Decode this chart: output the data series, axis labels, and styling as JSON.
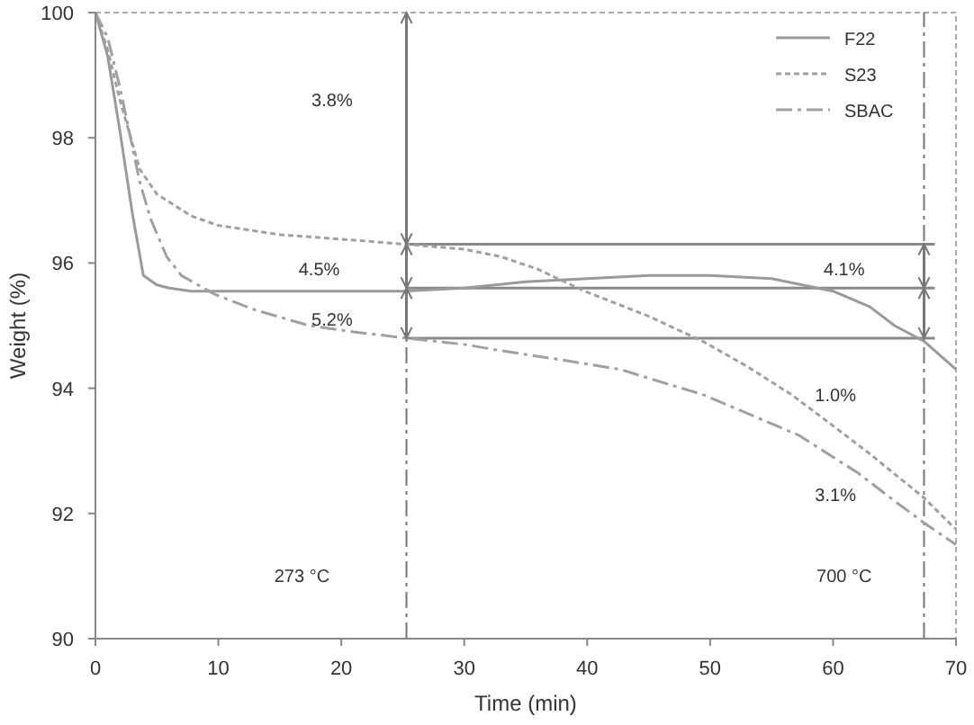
{
  "chart_data": {
    "type": "line",
    "xlabel": "Time (min)",
    "ylabel": "Weight (%)",
    "xlim": [
      0,
      70
    ],
    "ylim": [
      90,
      100
    ],
    "xticks": [
      0,
      10,
      20,
      30,
      40,
      50,
      60,
      70
    ],
    "yticks": [
      90,
      92,
      94,
      96,
      98,
      100
    ],
    "grid": false,
    "legend": "top right",
    "series": [
      {
        "name": "F22",
        "color": "#9a9a9a",
        "line_style": "solid",
        "x": [
          0,
          1,
          2,
          3,
          3.9,
          5,
          6,
          7.8,
          10,
          15,
          20,
          25,
          30,
          35,
          40,
          45,
          47.5,
          50,
          55,
          60,
          63,
          65,
          67.4,
          70
        ],
        "values": [
          100,
          99.3,
          98.1,
          96.8,
          95.8,
          95.65,
          95.6,
          95.55,
          95.55,
          95.55,
          95.55,
          95.55,
          95.6,
          95.7,
          95.75,
          95.8,
          95.8,
          95.8,
          95.75,
          95.55,
          95.3,
          95.0,
          94.75,
          94.3
        ]
      },
      {
        "name": "S23",
        "color": "#a0a0a0",
        "line_style": "dotted",
        "x": [
          0,
          1,
          2,
          3.6,
          5,
          7.8,
          10,
          15.1,
          20,
          25.2,
          30,
          33,
          36,
          39.8,
          45,
          49.4,
          53,
          56.6,
          60,
          63,
          67.4,
          69.7,
          70
        ],
        "values": [
          100,
          99.4,
          98.6,
          97.5,
          97.1,
          96.75,
          96.6,
          96.45,
          96.38,
          96.3,
          96.22,
          96.1,
          95.9,
          95.55,
          95.15,
          94.75,
          94.35,
          93.9,
          93.4,
          92.95,
          92.25,
          91.8,
          91.75
        ]
      },
      {
        "name": "SBAC",
        "color": "#a0a0a0",
        "line_style": "dashed",
        "x": [
          0,
          1,
          2,
          3.6,
          4.5,
          5.8,
          7,
          9.7,
          13,
          17.4,
          21,
          25.3,
          30,
          33,
          38,
          42.7,
          46,
          49.4,
          53,
          57.2,
          62,
          65,
          67.4,
          70
        ],
        "values": [
          100,
          99.6,
          98.8,
          97.3,
          96.7,
          96.1,
          95.8,
          95.5,
          95.25,
          95.0,
          94.9,
          94.8,
          94.7,
          94.6,
          94.45,
          94.3,
          94.1,
          93.9,
          93.6,
          93.25,
          92.65,
          92.2,
          91.85,
          91.5
        ]
      }
    ],
    "ref_lines": [
      {
        "axis": "x",
        "value": 25.3,
        "line_style": "dashed"
      },
      {
        "axis": "x",
        "value": 67.4,
        "line_style": "dashed"
      },
      {
        "axis": "y",
        "value": 96.3
      },
      {
        "axis": "y",
        "value": 95.6
      },
      {
        "axis": "y",
        "value": 94.8
      }
    ],
    "annotations": [
      "3.8%",
      "4.5%",
      "5.2%",
      "4.1%",
      "1.0%",
      "3.1%",
      "273 °C",
      "700 °C"
    ]
  }
}
